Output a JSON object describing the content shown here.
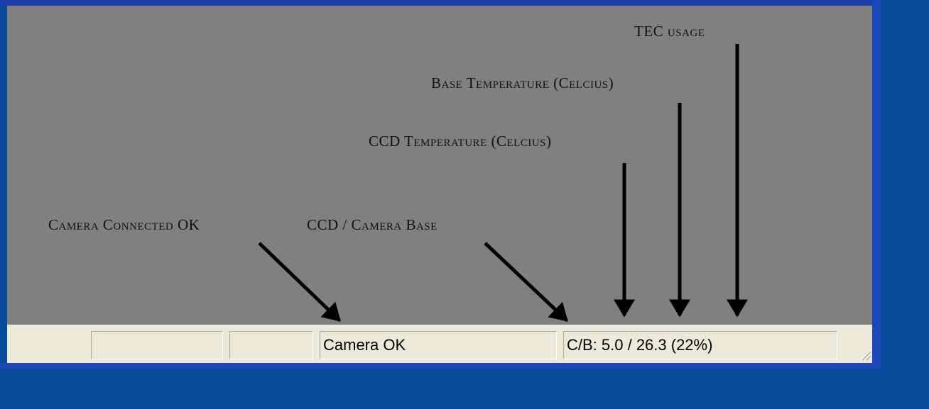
{
  "annotations": [
    "TEC usage",
    "Base Temperature (Celcius)",
    "CCD Temperature (Celcius)",
    "Camera Connected OK",
    "CCD / Camera Base"
  ],
  "status_bar": {
    "panels": [
      "",
      "",
      "Camera OK",
      "C/B: 5.0 / 26.3 (22%)"
    ]
  }
}
